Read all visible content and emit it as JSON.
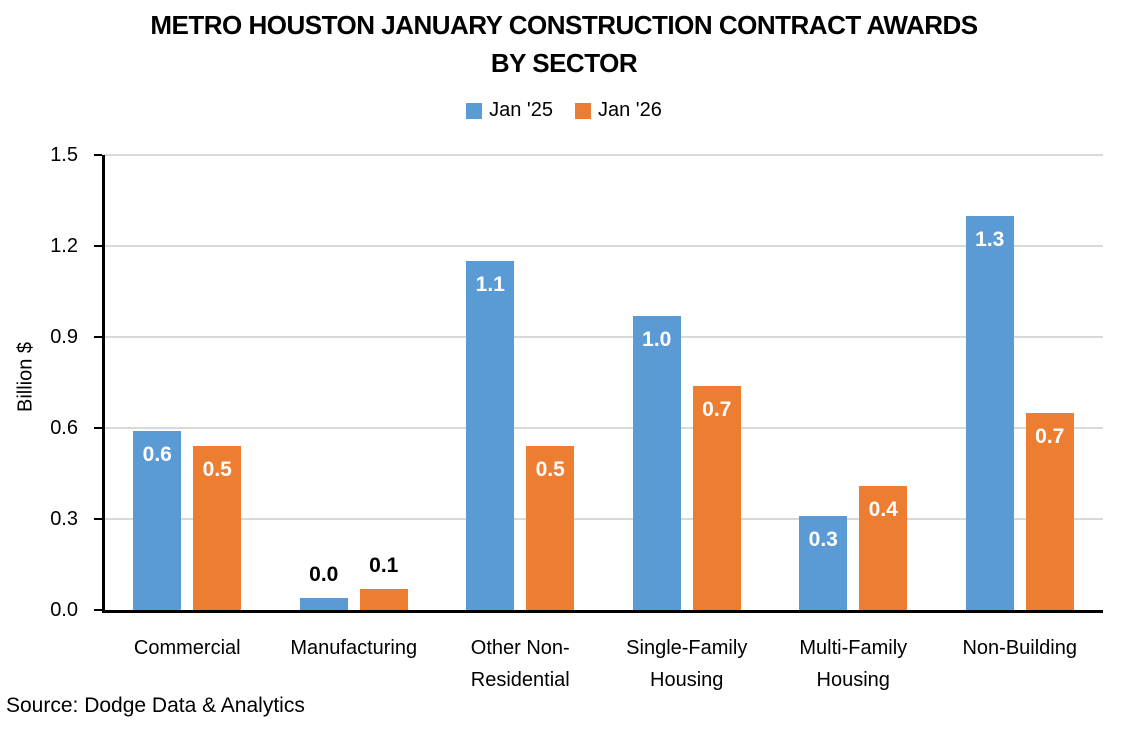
{
  "title": {
    "line1": "METRO HOUSTON JANUARY CONSTRUCTION CONTRACT AWARDS",
    "line2": "BY SECTOR"
  },
  "source": "Source: Dodge Data & Analytics",
  "colors": {
    "jan25": "#5B9BD5",
    "jan26": "#ED7D31",
    "gridline": "#D9D9D9",
    "axis": "#000000",
    "label_inside": "#FFFFFF",
    "label_outside": "#000000"
  },
  "chart_data": {
    "type": "bar",
    "title": "METRO HOUSTON JANUARY CONSTRUCTION CONTRACT AWARDS BY SECTOR",
    "ylabel": "Billion $",
    "xlabel": "",
    "ylim": [
      0,
      1.5
    ],
    "yticks": [
      0,
      0.3,
      0.6,
      0.9,
      1.2,
      1.5
    ],
    "ytick_labels": [
      "0.0",
      "0.3",
      "0.6",
      "0.9",
      "1.2",
      "1.5"
    ],
    "grid": true,
    "legend_position": "top",
    "categories": [
      "Commercial",
      "Manufacturing",
      "Other Non-Residential",
      "Single-Family Housing",
      "Multi-Family Housing",
      "Non-Building"
    ],
    "category_label_lines": [
      [
        "Commercial"
      ],
      [
        "Manufacturing"
      ],
      [
        "Other Non-",
        "Residential"
      ],
      [
        "Single-Family",
        "Housing"
      ],
      [
        "Multi-Family",
        "Housing"
      ],
      [
        "Non-Building"
      ]
    ],
    "series": [
      {
        "name": "Jan '25",
        "color": "#5B9BD5",
        "values": [
          0.59,
          0.04,
          1.15,
          0.97,
          0.31,
          1.3
        ],
        "labels": [
          "0.6",
          "0.0",
          "1.1",
          "1.0",
          "0.3",
          "1.3"
        ]
      },
      {
        "name": "Jan '26",
        "color": "#ED7D31",
        "values": [
          0.54,
          0.07,
          0.54,
          0.74,
          0.41,
          0.65
        ],
        "labels": [
          "0.5",
          "0.1",
          "0.5",
          "0.7",
          "0.4",
          "0.7"
        ]
      }
    ],
    "label_inside_threshold": 0.15
  }
}
